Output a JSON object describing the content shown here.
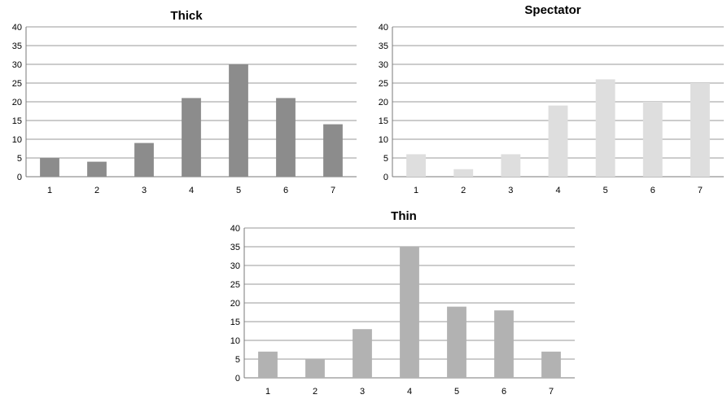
{
  "chart_data": [
    {
      "type": "bar",
      "title": "Thick",
      "categories": [
        "1",
        "2",
        "3",
        "4",
        "5",
        "6",
        "7"
      ],
      "values": [
        5,
        4,
        9,
        21,
        30,
        21,
        14
      ],
      "ylim": [
        0,
        40
      ],
      "yticks": [
        "0",
        "5",
        "10",
        "15",
        "20",
        "25",
        "30",
        "35",
        "40"
      ],
      "bar_color": "#8c8c8c",
      "grid": true
    },
    {
      "type": "bar",
      "title": "Spectator",
      "categories": [
        "1",
        "2",
        "3",
        "4",
        "5",
        "6",
        "7"
      ],
      "values": [
        6,
        2,
        6,
        19,
        26,
        20,
        25
      ],
      "ylim": [
        0,
        40
      ],
      "yticks": [
        "0",
        "5",
        "10",
        "15",
        "20",
        "25",
        "30",
        "35",
        "40"
      ],
      "bar_color": "#dedede",
      "grid": true
    },
    {
      "type": "bar",
      "title": "Thin",
      "categories": [
        "1",
        "2",
        "3",
        "4",
        "5",
        "6",
        "7"
      ],
      "values": [
        7,
        5,
        13,
        35,
        19,
        18,
        7
      ],
      "ylim": [
        0,
        40
      ],
      "yticks": [
        "0",
        "5",
        "10",
        "15",
        "20",
        "25",
        "30",
        "35",
        "40"
      ],
      "bar_color": "#b2b2b2",
      "grid": true
    }
  ]
}
